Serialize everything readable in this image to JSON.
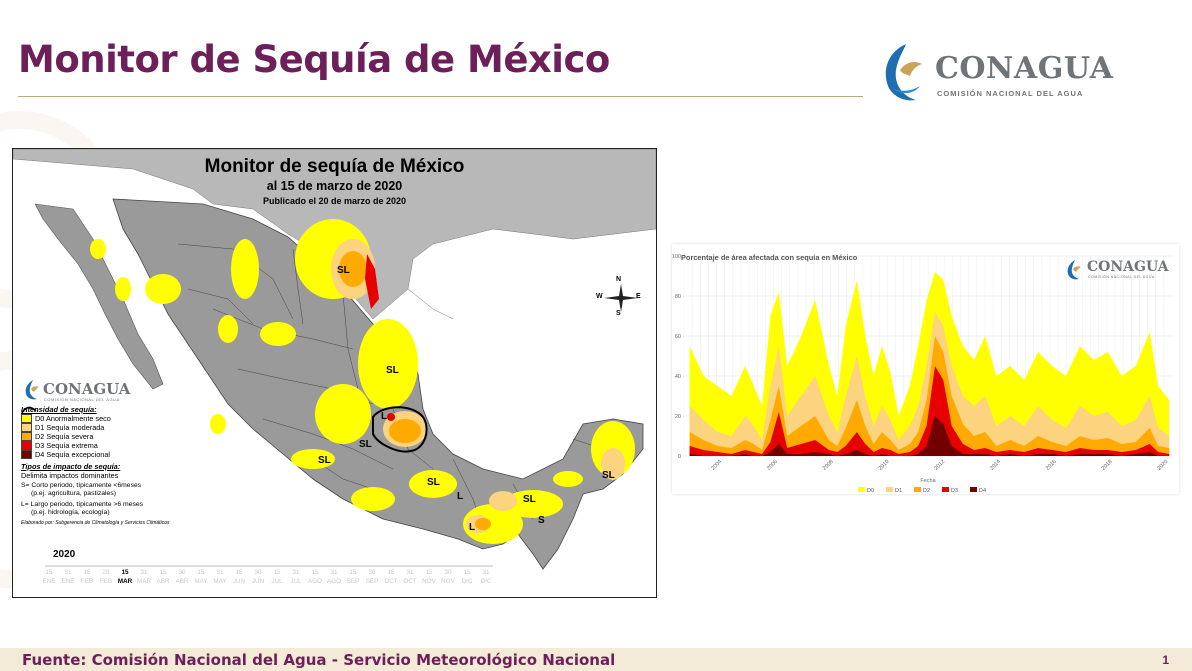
{
  "slide": {
    "title": "Monitor de Sequía de México",
    "logo": {
      "word": "CONAGUA",
      "subtitle": "COMISIÓN NACIONAL DEL AGUA"
    },
    "footer": "Fuente: Comisión Nacional del Agua - Servicio Meteorológico Nacional",
    "page_number": "1"
  },
  "map": {
    "title": "Monitor de sequía de México",
    "subtitle": "al 15 de marzo de 2020",
    "published": "Publicado el 20 de marzo de 2020",
    "logo_word": "CONAGUA",
    "logo_sub": "COMISIÓN NACIONAL DEL AGUA",
    "compass": {
      "n": "N",
      "s": "S",
      "e": "E",
      "w": "W"
    },
    "legend": {
      "intensity_header": "Intensidad de sequía:",
      "categories": [
        {
          "code": "D0",
          "label": "D0 Anormalmente seco",
          "color": "#ffff00"
        },
        {
          "code": "D1",
          "label": "D1 Sequía moderada",
          "color": "#fcd37f"
        },
        {
          "code": "D2",
          "label": "D2 Sequía severa",
          "color": "#ffaa00"
        },
        {
          "code": "D3",
          "label": "D3 Sequía extrema",
          "color": "#e60000"
        },
        {
          "code": "D4",
          "label": "D4 Sequía excepcional",
          "color": "#730000"
        }
      ],
      "impact_header": "Tipos de impacto de sequía:",
      "impact_line": "Delimita impactos dominantes",
      "short_term": "S= Corto periodo, típicamente <6meses",
      "short_term_ex": "(p.ej. agricultura, pastizales)",
      "long_term": "L= Largo periodo, típicamente >6 meses",
      "long_term_ex": "(p.ej. hidrología, ecología)",
      "credits": "Elaborado por: Subgerencia de Climatología y Servicios Climáticos"
    },
    "region_labels": [
      "SL",
      "SL",
      "L",
      "SL",
      "SL",
      "SL",
      "L",
      "SL",
      "L",
      "S",
      "SL"
    ],
    "timeline": {
      "year": "2020",
      "days": [
        "15",
        "31",
        "15",
        "28",
        "15",
        "31",
        "15",
        "30",
        "15",
        "31",
        "15",
        "30",
        "15",
        "31",
        "15",
        "31",
        "15",
        "30",
        "15",
        "31",
        "15",
        "30",
        "15",
        "31"
      ],
      "months": [
        "ENE",
        "ENE",
        "FEB",
        "FEB",
        "MAR",
        "MAR",
        "ABR",
        "ABR",
        "MAY",
        "MAY",
        "JUN",
        "JUN",
        "JUL",
        "JUL",
        "AGO",
        "AGO",
        "SEP",
        "SEP",
        "OCT",
        "OCT",
        "NOV",
        "NOV",
        "DIC",
        "DIC"
      ],
      "current_index": 4
    }
  },
  "chart": {
    "logo_word": "CONAGUA",
    "logo_sub": "COMISIÓN NACIONAL DEL AGUA",
    "chart_data": {
      "type": "area",
      "title": "Porcentaje de área afectada con sequía en México",
      "xlabel": "Fecha",
      "ylabel": "",
      "ylim": [
        0,
        100
      ],
      "yticks": [
        0,
        20,
        40,
        60,
        80,
        100
      ],
      "xlim": [
        2002.8,
        2020.3
      ],
      "xticks": [
        "2004",
        "2006",
        "2008",
        "2010",
        "2012",
        "2014",
        "2016",
        "2018",
        "2020"
      ],
      "legend_position": "bottom",
      "x": [
        2003.0,
        2003.5,
        2004.0,
        2004.5,
        2005.0,
        2005.3,
        2005.6,
        2005.9,
        2006.2,
        2006.5,
        2007.0,
        2007.5,
        2008.0,
        2008.3,
        2008.6,
        2009.0,
        2009.3,
        2009.6,
        2009.9,
        2010.2,
        2010.5,
        2010.9,
        2011.2,
        2011.5,
        2011.8,
        2012.1,
        2012.4,
        2012.8,
        2013.2,
        2013.6,
        2014.0,
        2014.5,
        2015.0,
        2015.5,
        2016.0,
        2016.5,
        2017.0,
        2017.5,
        2018.0,
        2018.5,
        2019.0,
        2019.5,
        2019.8,
        2020.2
      ],
      "series": [
        {
          "name": "D0",
          "color": "#ffff00",
          "values": [
            55,
            40,
            35,
            30,
            45,
            35,
            25,
            70,
            82,
            45,
            60,
            78,
            45,
            30,
            65,
            88,
            60,
            40,
            55,
            42,
            20,
            35,
            55,
            78,
            92,
            88,
            70,
            55,
            48,
            60,
            40,
            45,
            38,
            52,
            45,
            40,
            55,
            48,
            52,
            40,
            45,
            62,
            35,
            28
          ]
        },
        {
          "name": "D1",
          "color": "#fcd37f",
          "values": [
            25,
            18,
            12,
            10,
            20,
            15,
            8,
            35,
            55,
            20,
            30,
            40,
            20,
            12,
            30,
            50,
            30,
            15,
            25,
            18,
            8,
            15,
            25,
            45,
            72,
            65,
            45,
            30,
            25,
            30,
            15,
            20,
            15,
            25,
            18,
            14,
            25,
            20,
            22,
            15,
            18,
            30,
            14,
            10
          ]
        },
        {
          "name": "D2",
          "color": "#ffaa00",
          "values": [
            12,
            8,
            5,
            4,
            8,
            6,
            3,
            18,
            35,
            10,
            15,
            20,
            8,
            5,
            14,
            28,
            15,
            6,
            12,
            8,
            3,
            6,
            12,
            28,
            60,
            52,
            30,
            16,
            10,
            12,
            5,
            8,
            5,
            10,
            7,
            5,
            10,
            8,
            9,
            6,
            7,
            14,
            5,
            4
          ]
        },
        {
          "name": "D3",
          "color": "#e60000",
          "values": [
            5,
            3,
            2,
            1,
            3,
            2,
            1,
            7,
            22,
            4,
            6,
            8,
            3,
            2,
            5,
            12,
            6,
            2,
            4,
            3,
            1,
            2,
            5,
            15,
            45,
            38,
            15,
            6,
            3,
            4,
            2,
            3,
            2,
            4,
            3,
            2,
            4,
            3,
            3,
            2,
            3,
            6,
            2,
            1
          ]
        },
        {
          "name": "D4",
          "color": "#730000",
          "values": [
            1,
            0,
            0,
            0,
            1,
            0,
            0,
            2,
            6,
            1,
            1,
            2,
            1,
            0,
            1,
            3,
            1,
            0,
            1,
            0,
            0,
            0,
            1,
            5,
            20,
            16,
            5,
            1,
            1,
            1,
            0,
            1,
            0,
            1,
            1,
            0,
            1,
            1,
            1,
            0,
            1,
            2,
            0,
            0
          ]
        }
      ]
    }
  }
}
